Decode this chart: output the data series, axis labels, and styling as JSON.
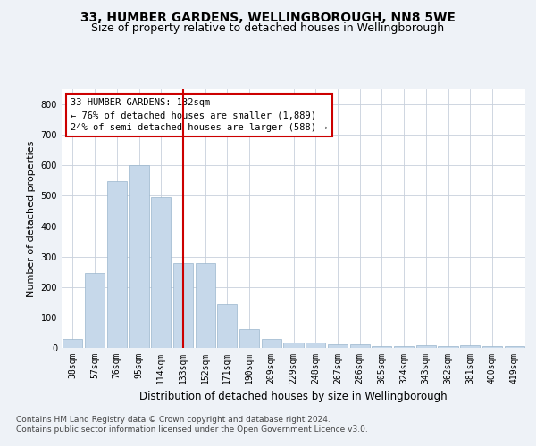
{
  "title": "33, HUMBER GARDENS, WELLINGBOROUGH, NN8 5WE",
  "subtitle": "Size of property relative to detached houses in Wellingborough",
  "xlabel": "Distribution of detached houses by size in Wellingborough",
  "ylabel": "Number of detached properties",
  "categories": [
    "38sqm",
    "57sqm",
    "76sqm",
    "95sqm",
    "114sqm",
    "133sqm",
    "152sqm",
    "171sqm",
    "190sqm",
    "209sqm",
    "229sqm",
    "248sqm",
    "267sqm",
    "286sqm",
    "305sqm",
    "324sqm",
    "343sqm",
    "362sqm",
    "381sqm",
    "400sqm",
    "419sqm"
  ],
  "values": [
    30,
    245,
    548,
    602,
    495,
    278,
    278,
    145,
    62,
    30,
    18,
    18,
    12,
    12,
    5,
    5,
    8,
    5,
    8,
    5,
    5
  ],
  "bar_color": "#c6d8ea",
  "bar_edgecolor": "#9ab5cc",
  "vline_x_idx": 5,
  "vline_color": "#cc0000",
  "annotation_title": "33 HUMBER GARDENS: 132sqm",
  "annotation_line1": "← 76% of detached houses are smaller (1,889)",
  "annotation_line2": "24% of semi-detached houses are larger (588) →",
  "annotation_box_color": "#ffffff",
  "annotation_box_edgecolor": "#cc0000",
  "ylim": [
    0,
    850
  ],
  "yticks": [
    0,
    100,
    200,
    300,
    400,
    500,
    600,
    700,
    800
  ],
  "footer1": "Contains HM Land Registry data © Crown copyright and database right 2024.",
  "footer2": "Contains public sector information licensed under the Open Government Licence v3.0.",
  "background_color": "#eef2f7",
  "plot_background": "#ffffff",
  "grid_color": "#c8d0dc",
  "title_fontsize": 10,
  "subtitle_fontsize": 9,
  "xlabel_fontsize": 8.5,
  "ylabel_fontsize": 8,
  "tick_fontsize": 7,
  "annotation_fontsize": 7.5,
  "footer_fontsize": 6.5
}
